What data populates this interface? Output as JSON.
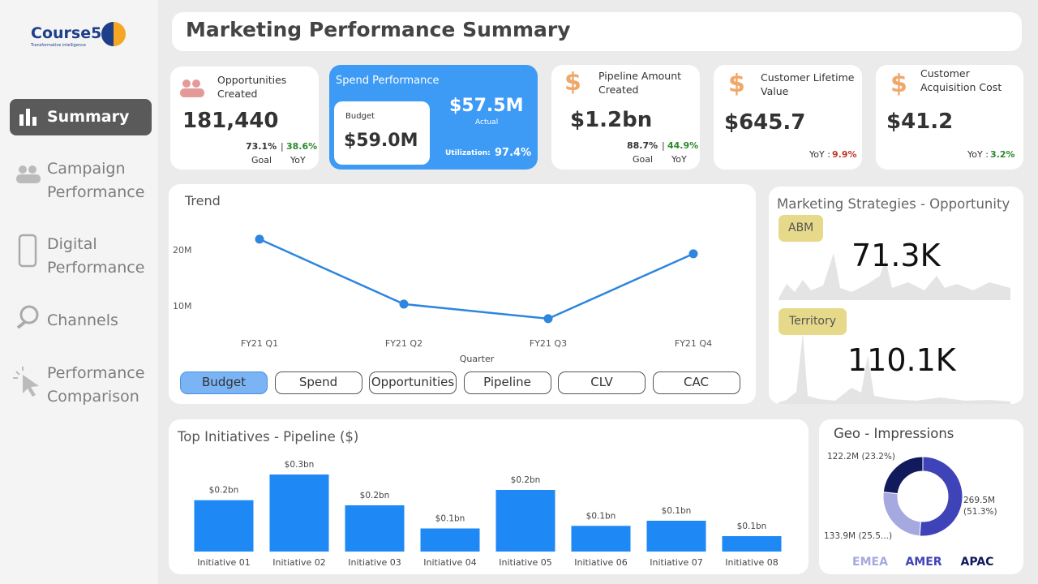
{
  "brand": {
    "name": "Course5",
    "tagline": "Transformative intelligence"
  },
  "nav": [
    "Summary",
    "Campaign Performance",
    "Digital Performance",
    "Channels",
    "Performance Comparison"
  ],
  "header": {
    "title": "Marketing Performance Summary"
  },
  "kpis": {
    "opportunities": {
      "label": "Opportunities Created",
      "value": "181,440",
      "goal": "73.1%",
      "sep": "|",
      "yoy": "38.6%",
      "goal_label": "Goal",
      "yoy_label": "YoY"
    },
    "spend": {
      "label": "Spend Performance",
      "budget_label": "Budget",
      "budget": "$59.0M",
      "actual": "$57.5M",
      "actual_label": "Actual",
      "utilization_label": "Utilization:",
      "utilization": "97.4%"
    },
    "pipeline": {
      "icon": "$",
      "label": "Pipeline Amount Created",
      "value": "$1.2bn",
      "goal": "88.7%",
      "sep": "|",
      "yoy": "44.9%",
      "goal_label": "Goal",
      "yoy_label": "YoY"
    },
    "clv": {
      "icon": "$",
      "label": "Customer Lifetime Value",
      "value": "$645.7",
      "yoy_label": "YoY :",
      "yoy": "9.9%"
    },
    "cac": {
      "icon": "$",
      "label": "Customer Acquisition Cost",
      "value": "$41.2",
      "yoy_label": "YoY :",
      "yoy": "3.2%"
    }
  },
  "trend": {
    "type": "line",
    "title": "Trend",
    "x_label": "Quarter",
    "categories": [
      "FY21 Q1",
      "FY21 Q2",
      "FY21 Q3",
      "FY21 Q4"
    ],
    "values": [
      21900000,
      10300000,
      7700000,
      19300000
    ],
    "color": "#2e86de",
    "ylim": [
      5000000,
      25000000
    ],
    "yticks": [
      {
        "value": 10000000,
        "label": "10M"
      },
      {
        "value": 20000000,
        "label": "20M"
      }
    ],
    "buttons": [
      "Budget",
      "Spend",
      "Opportunities",
      "Pipeline",
      "CLV",
      "CAC"
    ],
    "active_button": 0
  },
  "strategies": {
    "title": "Marketing Strategies - Opportunity",
    "items": [
      {
        "name": "ABM",
        "value": "71.3K"
      },
      {
        "name": "Territory",
        "value": "110.1K"
      }
    ]
  },
  "initiatives": {
    "type": "bar",
    "title": "Top Initiatives - Pipeline ($)",
    "categories": [
      "Initiative 01",
      "Initiative 02",
      "Initiative 03",
      "Initiative 04",
      "Initiative 05",
      "Initiative 06",
      "Initiative 07",
      "Initiative 08"
    ],
    "values": [
      0.2,
      0.3,
      0.18,
      0.09,
      0.24,
      0.1,
      0.12,
      0.06
    ],
    "value_labels": [
      "$0.2bn",
      "$0.3bn",
      "$0.2bn",
      "$0.1bn",
      "$0.2bn",
      "$0.1bn",
      "$0.1bn",
      "$0.1bn"
    ],
    "color": "#1e88f5"
  },
  "geo": {
    "type": "pie",
    "title": "Geo - Impressions",
    "categories": [
      "EMEA",
      "AMER",
      "APAC"
    ],
    "values": [
      133.9,
      269.5,
      122.2
    ],
    "value_labels": [
      "133.9M (25.5...)",
      "269.5M (51.3%)",
      "122.2M (23.2%)"
    ],
    "colors": [
      "#a6a8e0",
      "#3f43b8",
      "#111a5c"
    ]
  }
}
